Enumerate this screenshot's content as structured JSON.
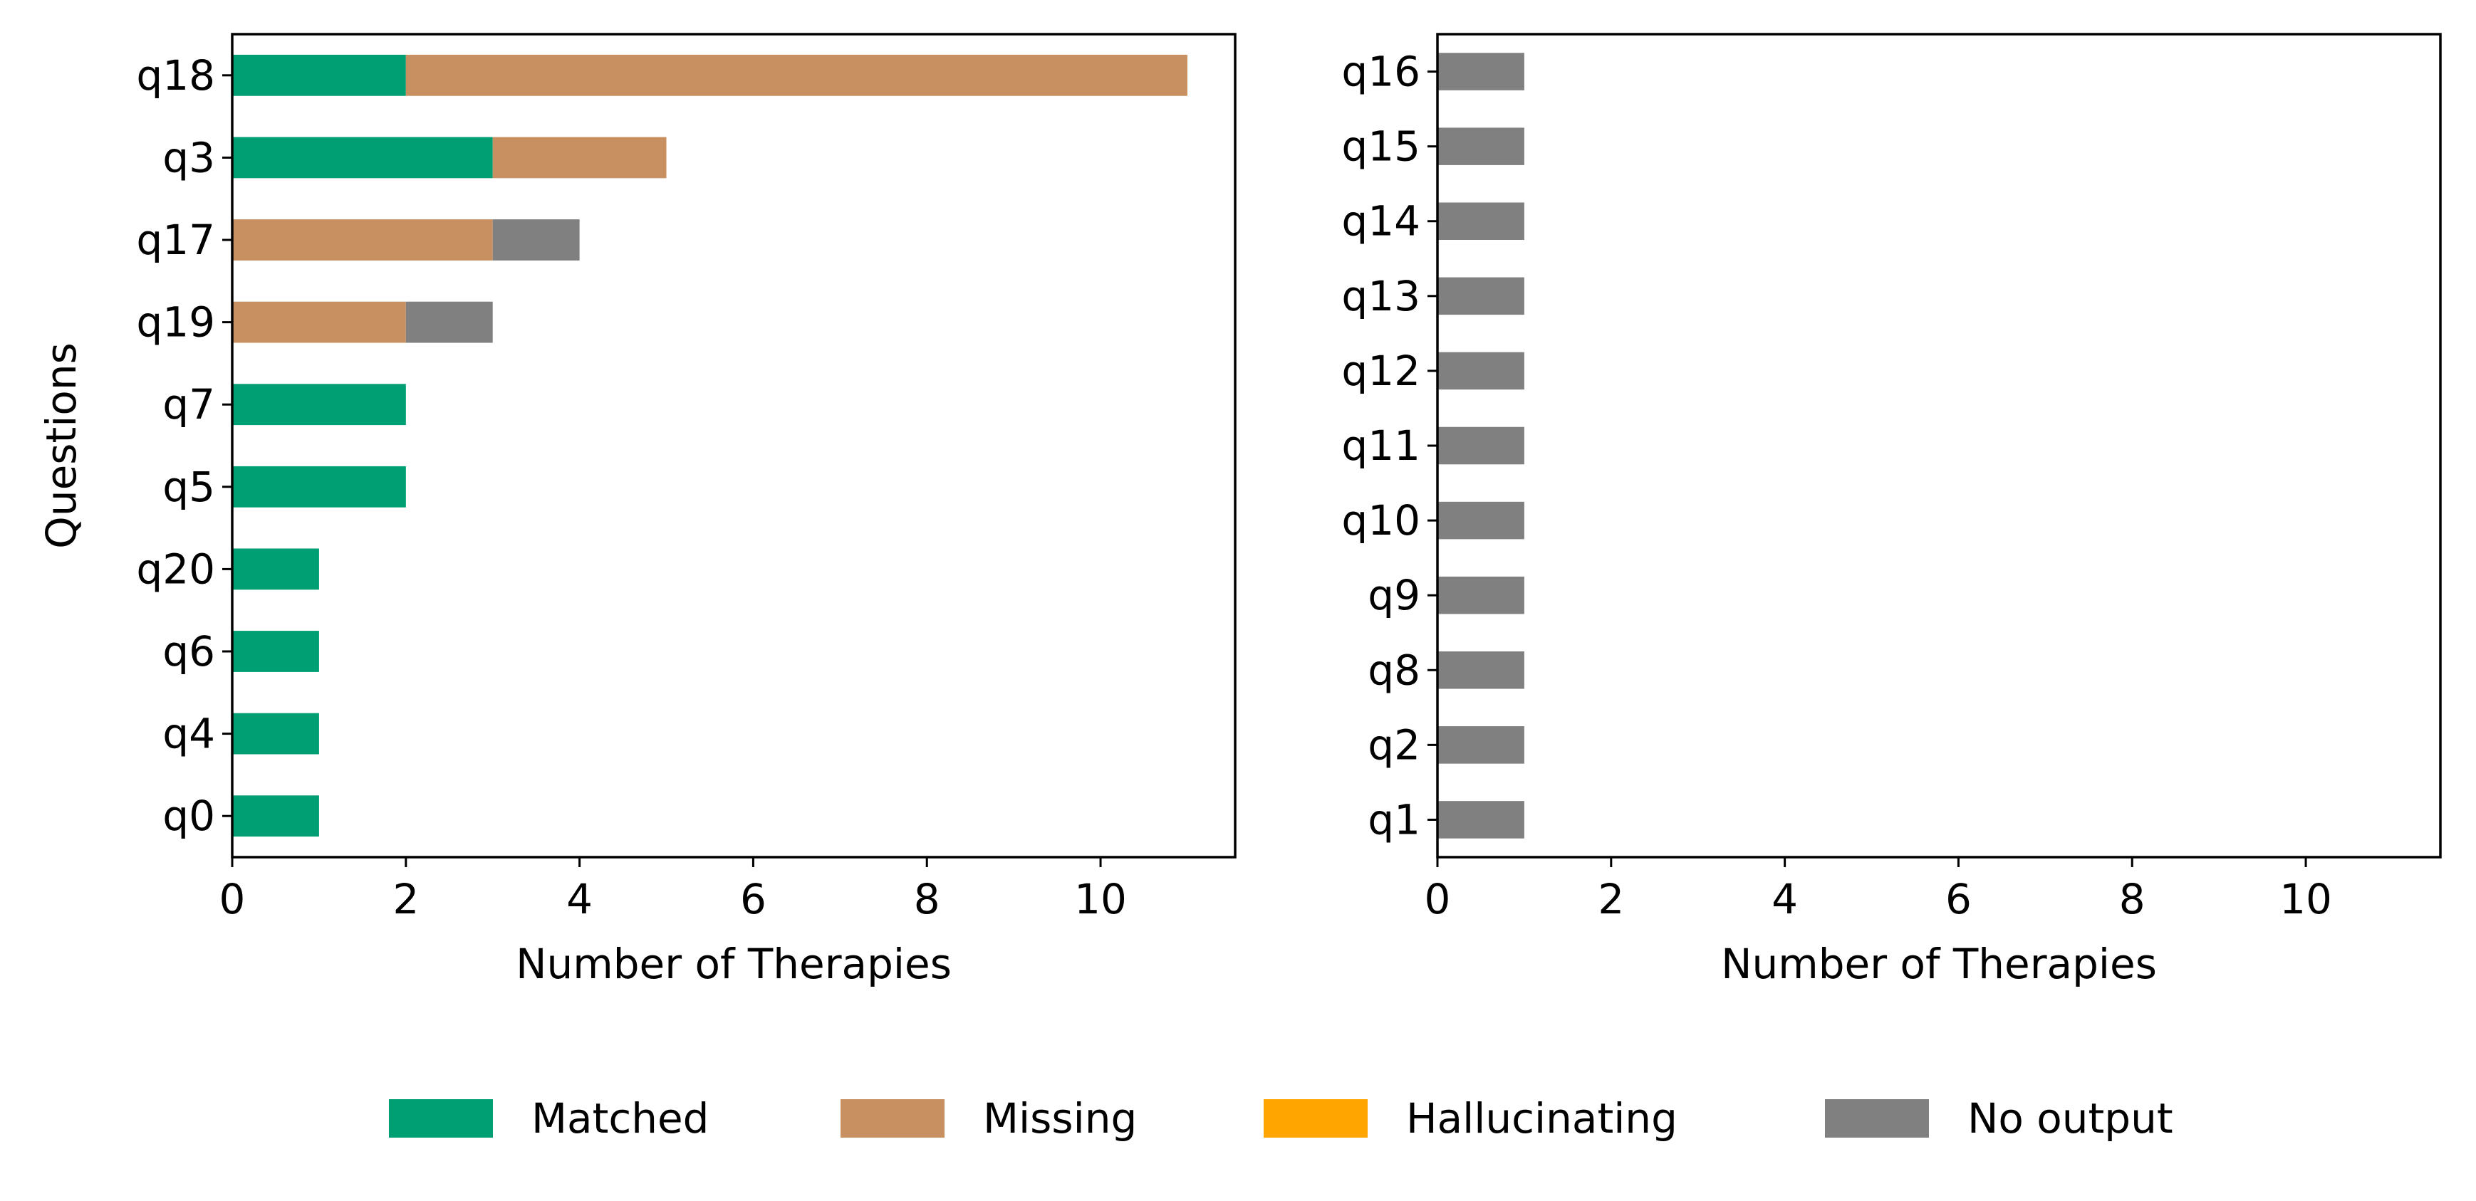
{
  "chart_data": [
    {
      "type": "bar",
      "orientation": "horizontal",
      "stacked": true,
      "categories": [
        "q18",
        "q3",
        "q17",
        "q19",
        "q7",
        "q5",
        "q20",
        "q6",
        "q4",
        "q0"
      ],
      "series": [
        {
          "name": "Matched",
          "values": [
            2,
            3,
            0,
            0,
            2,
            2,
            1,
            1,
            1,
            1
          ]
        },
        {
          "name": "Missing",
          "values": [
            9,
            2,
            3,
            2,
            0,
            0,
            0,
            0,
            0,
            0
          ]
        },
        {
          "name": "Hallucinating",
          "values": [
            0,
            0,
            0,
            0,
            0,
            0,
            0,
            0,
            0,
            0
          ]
        },
        {
          "name": "No output",
          "values": [
            0,
            0,
            1,
            1,
            0,
            0,
            0,
            0,
            0,
            0
          ]
        }
      ],
      "xlabel": "Number of Therapies",
      "ylabel": "Questions",
      "xlim": [
        0,
        11.55
      ],
      "xticks": [
        0,
        2,
        4,
        6,
        8,
        10
      ],
      "grid": false
    },
    {
      "type": "bar",
      "orientation": "horizontal",
      "stacked": true,
      "categories": [
        "q16",
        "q15",
        "q14",
        "q13",
        "q12",
        "q11",
        "q10",
        "q9",
        "q8",
        "q2",
        "q1"
      ],
      "series": [
        {
          "name": "Matched",
          "values": [
            0,
            0,
            0,
            0,
            0,
            0,
            0,
            0,
            0,
            0,
            0
          ]
        },
        {
          "name": "Missing",
          "values": [
            0,
            0,
            0,
            0,
            0,
            0,
            0,
            0,
            0,
            0,
            0
          ]
        },
        {
          "name": "Hallucinating",
          "values": [
            0,
            0,
            0,
            0,
            0,
            0,
            0,
            0,
            0,
            0,
            0
          ]
        },
        {
          "name": "No output",
          "values": [
            1,
            1,
            1,
            1,
            1,
            1,
            1,
            1,
            1,
            1,
            1
          ]
        }
      ],
      "xlabel": "Number of Therapies",
      "ylabel": "",
      "xlim": [
        0,
        11.55
      ],
      "xticks": [
        0,
        2,
        4,
        6,
        8,
        10
      ],
      "grid": false
    }
  ],
  "legend": {
    "placement": "bottom-center",
    "entries": [
      {
        "name": "Matched",
        "color": "#009e73"
      },
      {
        "name": "Missing",
        "color": "#c89060"
      },
      {
        "name": "Hallucinating",
        "color": "#ffa500"
      },
      {
        "name": "No output",
        "color": "#808080"
      }
    ]
  }
}
